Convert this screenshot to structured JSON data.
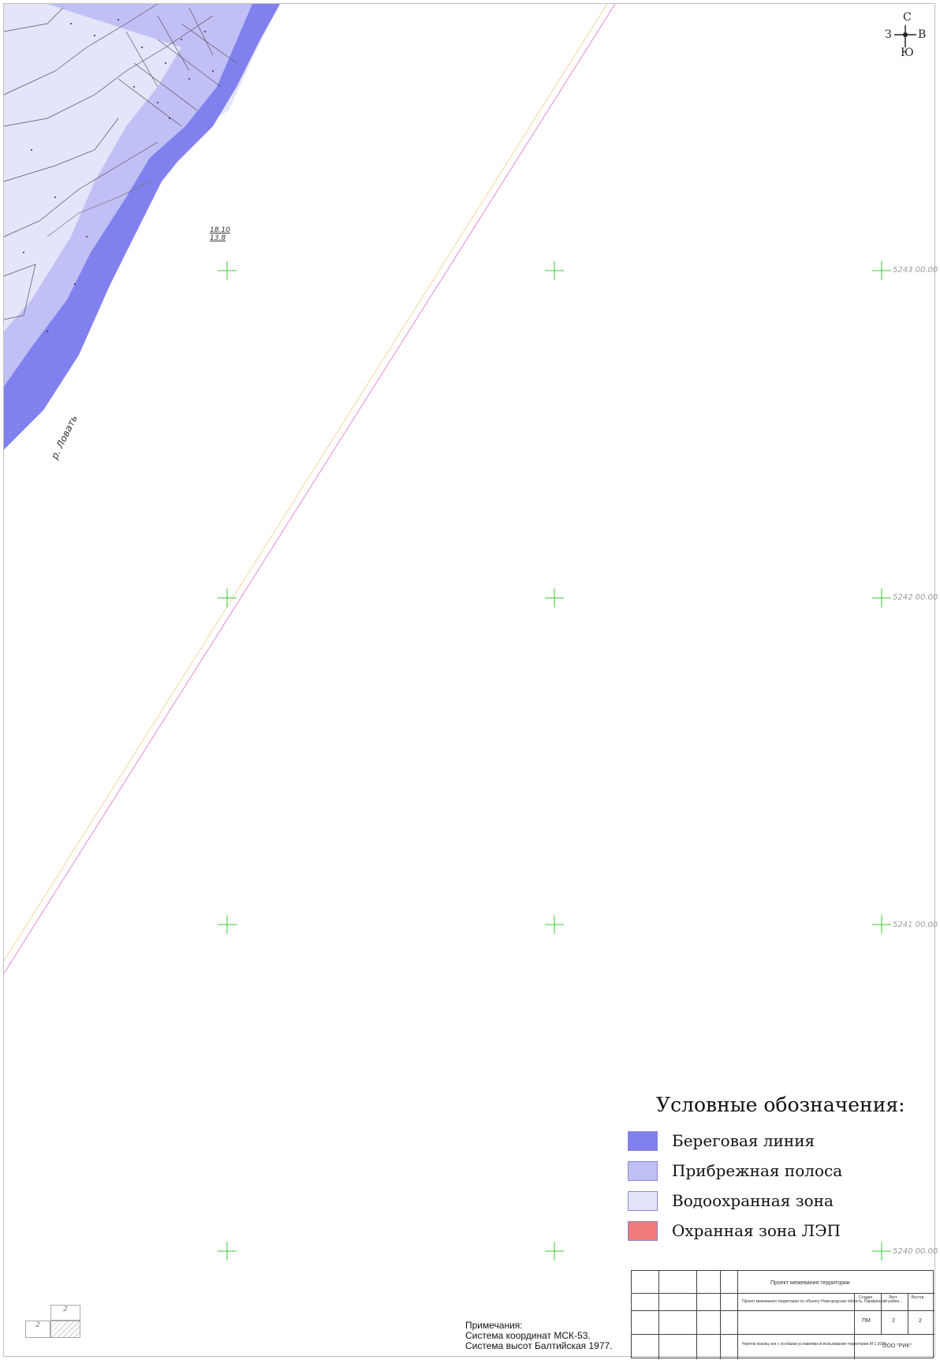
{
  "map": {
    "grid_labels": [
      "5243 00.00",
      "5242 00.00",
      "5241 00.00",
      "5240 00.00"
    ],
    "spot_elevation": [
      "18.10",
      "13.8"
    ],
    "river_label": "р. Ловать"
  },
  "compass": {
    "north": "С",
    "south": "Ю",
    "west": "З",
    "east": "В"
  },
  "legend": {
    "title": "Условные обозначения:",
    "items": [
      {
        "label": "Береговая линия",
        "color": "#8080ee"
      },
      {
        "label": "Прибрежная полоса",
        "color": "#c0c0f6"
      },
      {
        "label": "Водоохранная зона",
        "color": "#e4e4fb"
      },
      {
        "label": "Охранная зона ЛЭП",
        "color": "#f07a7a"
      }
    ]
  },
  "notes": {
    "heading": "Примечания:",
    "lines": [
      "Система координат МСК-53.",
      "Система высот Балтийская 1977."
    ]
  },
  "title_block": {
    "sheet_title": "Проект межевания территории",
    "project": "Проект межевания территории по объекту Новгородская область, Парфинский район...",
    "stage": "ПМ",
    "sheet": "2",
    "sheets": "2",
    "drawing": "Чертеж границ зон с особыми условиями использования территории М 1:1000",
    "org": "ООО \"РИК\"",
    "stage_header": "Стадия",
    "sheet_header": "Лист",
    "sheets_header": "Листов"
  },
  "mini_block": {
    "top": "2",
    "left": "2"
  }
}
